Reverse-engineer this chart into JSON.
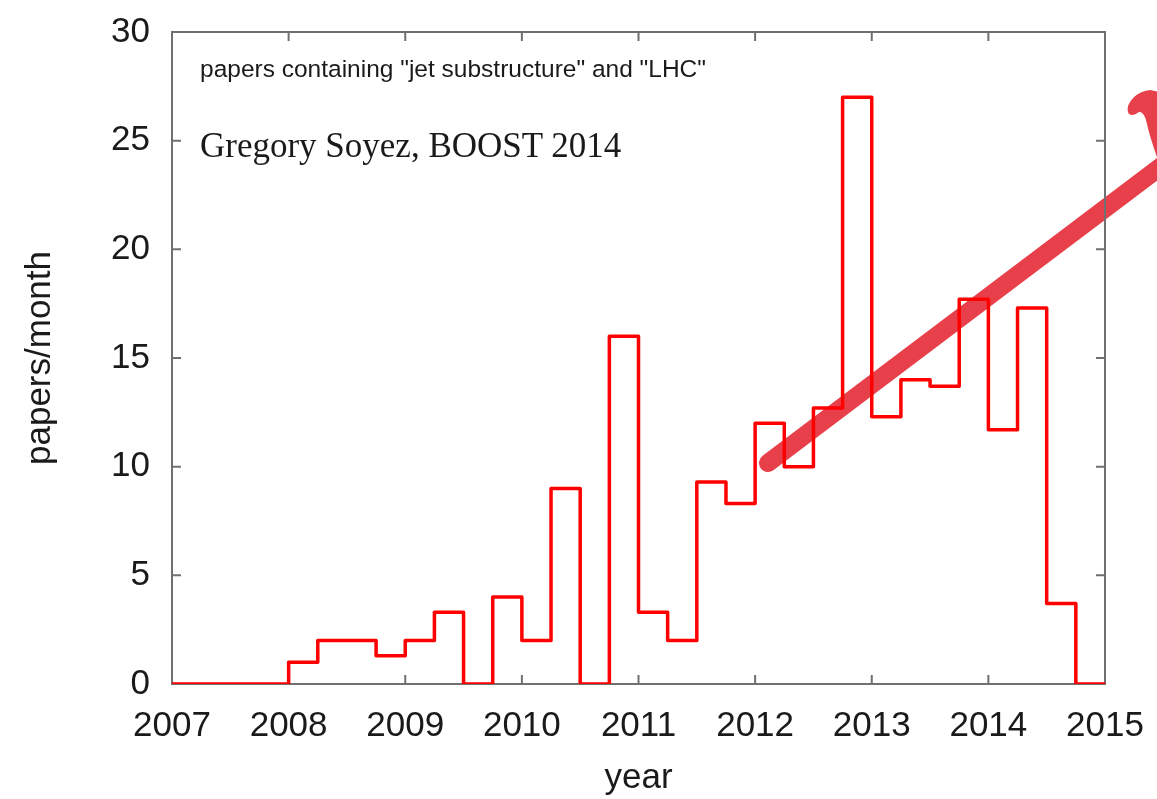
{
  "chart_data": {
    "type": "histogram",
    "title": "papers containing \"jet substructure\" and \"LHC\"",
    "subtitle": "Gregory Soyez, BOOST 2014",
    "xlabel": "year",
    "ylabel": "papers/month",
    "bins": [
      2007,
      2007.25,
      2007.5,
      2007.75,
      2008,
      2008.25,
      2008.5,
      2008.75,
      2009,
      2009.25,
      2009.5,
      2009.75,
      2010,
      2010.25,
      2010.5,
      2010.75,
      2011,
      2011.25,
      2011.5,
      2011.75,
      2012,
      2012.25,
      2012.5,
      2012.75,
      2013,
      2013.25,
      2013.5,
      2013.75,
      2014,
      2014.25,
      2014.5,
      2014.75,
      2015
    ],
    "values": [
      0,
      0,
      0,
      0,
      1,
      2,
      2,
      1.3,
      2,
      3.3,
      0,
      4,
      2,
      9,
      0,
      16,
      3.3,
      2,
      9.3,
      8.3,
      12,
      10,
      12.7,
      27,
      12.3,
      14,
      13.7,
      17.7,
      11.7,
      17.3,
      3.7,
      0
    ],
    "color": "#ff0000",
    "xlim": [
      2007,
      2015
    ],
    "xticks": [
      2007,
      2008,
      2009,
      2010,
      2011,
      2012,
      2013,
      2014,
      2015
    ],
    "ylim": [
      0,
      30
    ],
    "yticks": [
      0,
      5,
      10,
      15,
      20,
      25,
      30
    ]
  }
}
